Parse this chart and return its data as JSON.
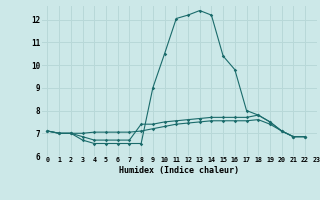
{
  "xlabel": "Humidex (Indice chaleur)",
  "ylabel": "",
  "background_color": "#cce8e8",
  "grid_color": "#b8d8d8",
  "line_color": "#1a6b6b",
  "xlim": [
    -0.5,
    23
  ],
  "ylim": [
    6,
    12.6
  ],
  "xticks": [
    0,
    1,
    2,
    3,
    4,
    5,
    6,
    7,
    8,
    9,
    10,
    11,
    12,
    13,
    14,
    15,
    16,
    17,
    18,
    19,
    20,
    21,
    22,
    23
  ],
  "yticks": [
    6,
    7,
    8,
    9,
    10,
    11,
    12
  ],
  "line1": [
    7.1,
    7.0,
    7.0,
    6.7,
    6.55,
    6.55,
    6.55,
    6.55,
    6.55,
    9.0,
    10.5,
    12.05,
    12.2,
    12.4,
    12.2,
    10.4,
    9.8,
    8.0,
    7.8,
    7.5,
    7.1,
    6.85,
    6.85
  ],
  "line2": [
    7.1,
    7.0,
    7.0,
    6.85,
    6.7,
    6.7,
    6.7,
    6.7,
    7.4,
    7.4,
    7.5,
    7.55,
    7.6,
    7.65,
    7.7,
    7.7,
    7.7,
    7.7,
    7.8,
    7.5,
    7.1,
    6.85,
    6.85
  ],
  "line3": [
    7.1,
    7.0,
    7.0,
    7.0,
    7.05,
    7.05,
    7.05,
    7.05,
    7.1,
    7.2,
    7.3,
    7.4,
    7.45,
    7.5,
    7.55,
    7.55,
    7.55,
    7.55,
    7.6,
    7.4,
    7.1,
    6.85,
    6.85
  ]
}
